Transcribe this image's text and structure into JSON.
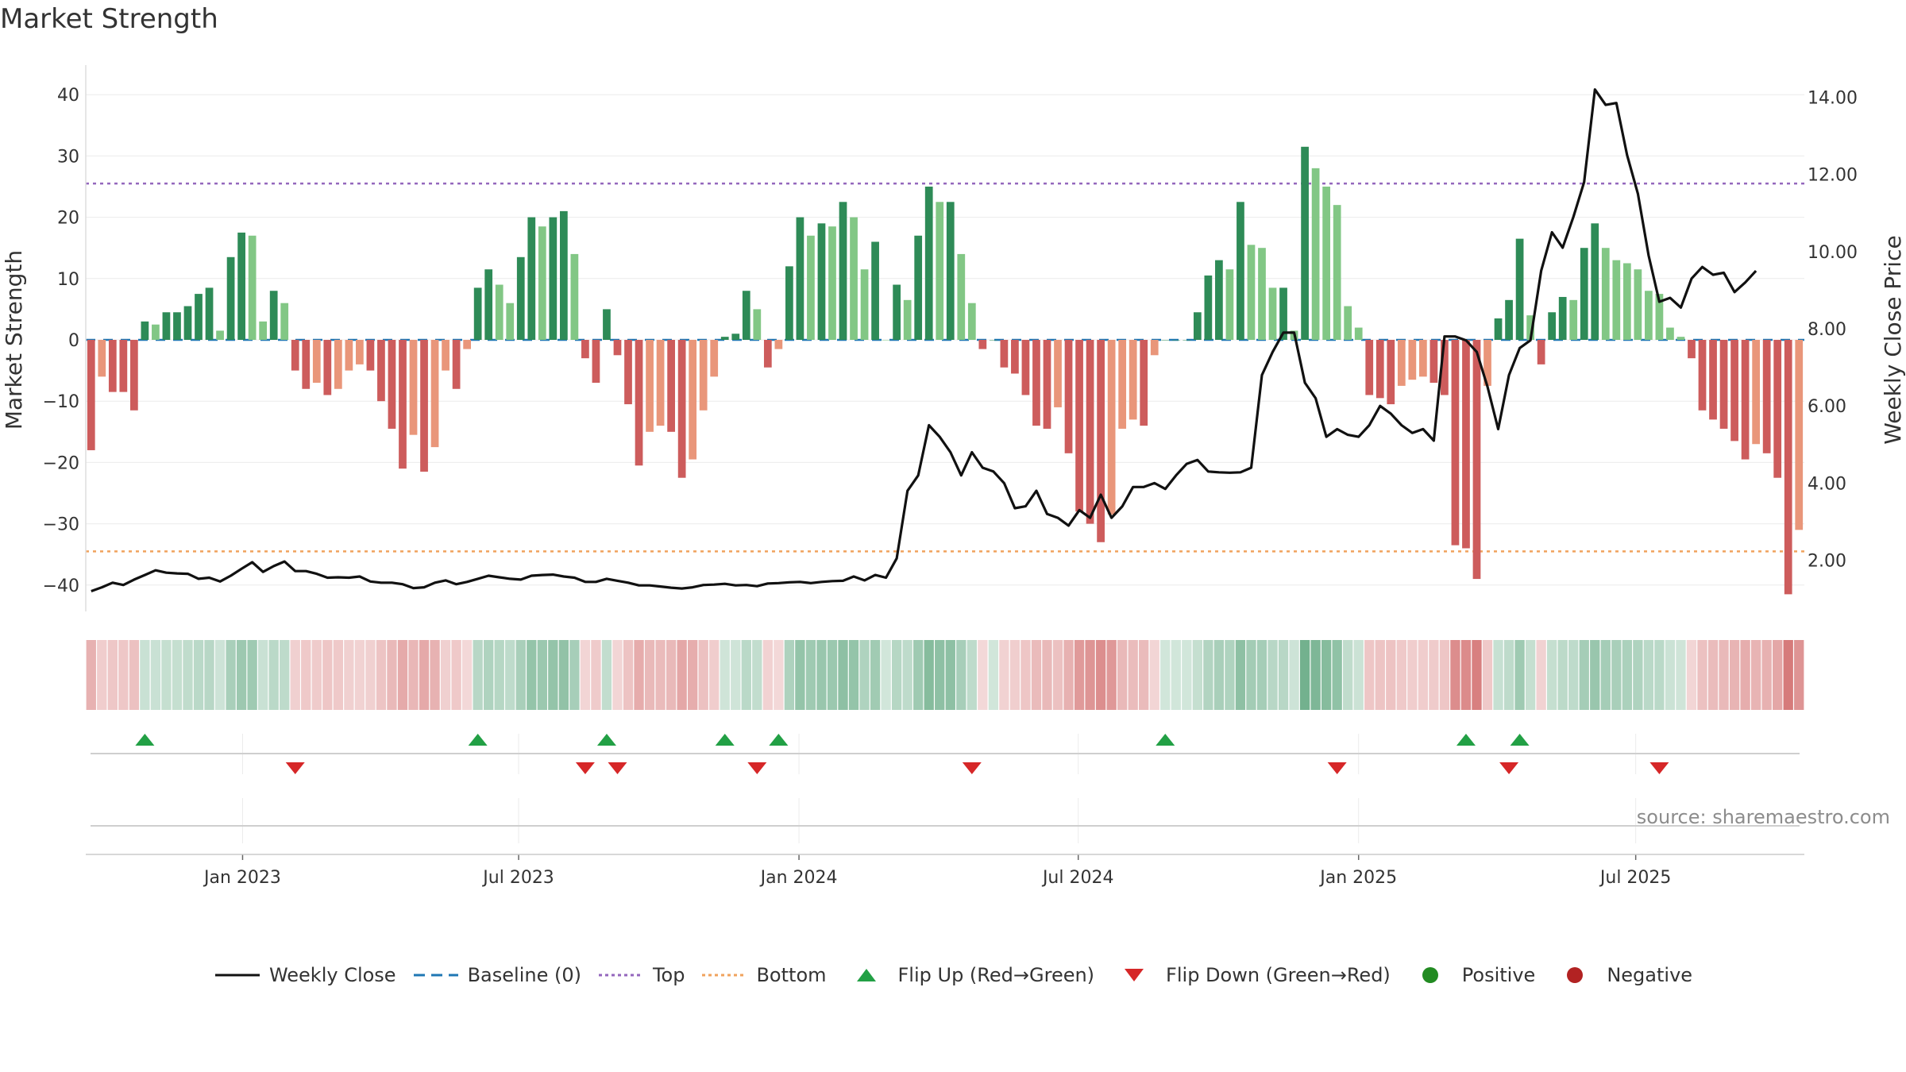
{
  "title": "Market Strength",
  "source": "source: sharemaestro.com",
  "colors": {
    "pos_strong": "#2e8b57",
    "pos_light": "#82c785",
    "neg_strong": "#cd5c5c",
    "neg_light": "#e9967a",
    "price": "#111111",
    "baseline": "#1f77b4",
    "top": "#9467bd",
    "bottom": "#f0a35e",
    "flip_up": "#22a045",
    "flip_down": "#d62728",
    "positive": "#228b22",
    "negative": "#b22222"
  },
  "chart_data": {
    "type": "bar",
    "ylabel": "Market Strength",
    "y2label": "Weekly Close Price",
    "ylim": [
      -45,
      45
    ],
    "y2lim": [
      0.7,
      15.0
    ],
    "yticks": [
      40,
      30,
      20,
      10,
      0,
      -10,
      -20,
      -30,
      -40
    ],
    "yticklabels": [
      "40",
      "30",
      "20",
      "10",
      "0",
      "−10",
      "−20",
      "−30",
      "−40"
    ],
    "y2ticks": [
      14,
      12,
      10,
      8,
      6,
      4,
      2
    ],
    "y2ticklabels": [
      "14.00",
      "12.00",
      "10.00",
      "8.00",
      "6.00",
      "4.00",
      "2.00"
    ],
    "xticks": [
      "Jan 2023",
      "Jul 2023",
      "Jan 2024",
      "Jul 2024",
      "Jan 2025",
      "Jul 2025"
    ],
    "xtick_weeks": [
      14.6,
      40.3,
      66.4,
      92.4,
      118.5,
      144.3
    ],
    "top_line": 25.5,
    "bottom_line": -34.5,
    "strength": [
      -18,
      -6,
      -8.5,
      -8.5,
      -11.5,
      3,
      2.5,
      4.5,
      4.5,
      5.5,
      7.5,
      8.5,
      1.5,
      13.5,
      17.5,
      17,
      3,
      8,
      6,
      -5,
      -8,
      -7,
      -9,
      -8,
      -5,
      -4,
      -5,
      -10,
      -14.5,
      -21,
      -15.5,
      -21.5,
      -17.5,
      -5,
      -8,
      -1.5,
      8.5,
      11.5,
      9,
      6,
      13.5,
      20,
      18.5,
      20,
      21,
      14,
      -3,
      -7,
      5,
      -2.5,
      -10.5,
      -20.5,
      -15,
      -14,
      -15,
      -22.5,
      -19.5,
      -11.5,
      -6,
      0.5,
      1,
      8,
      5,
      -4.5,
      -1.5,
      12,
      20,
      17,
      19,
      18.5,
      22.5,
      20,
      11.5,
      16,
      0,
      9,
      6.5,
      17,
      25,
      22.5,
      22.5,
      14,
      6,
      -1.5,
      0,
      -4.5,
      -5.5,
      -9,
      -14,
      -14.5,
      -11,
      -18.5,
      -28,
      -30,
      -33,
      -28.5,
      -14.5,
      -13,
      -14,
      -2.5,
      0,
      0,
      0,
      4.5,
      10.5,
      13,
      11.5,
      22.5,
      15.5,
      15,
      8.5,
      8.5,
      1.5,
      31.5,
      28,
      25,
      22,
      5.5,
      2,
      -9,
      -9.5,
      -10.5,
      -7.5,
      -6.5,
      -6,
      -7,
      -9,
      -33.5,
      -34,
      -39,
      -7.5,
      3.5,
      6.5,
      16.5,
      4,
      -4,
      4.5,
      7,
      6.5,
      15,
      19,
      15,
      13,
      12.5,
      11.5,
      8,
      7.5,
      2,
      0.5,
      -3,
      -11.5,
      -13,
      -14.5,
      -16.5,
      -19.5,
      -17,
      -18.5,
      -22.5,
      -41.5,
      -31
    ],
    "price": [
      1.2,
      1.3,
      1.42,
      1.36,
      1.5,
      1.62,
      1.74,
      1.68,
      1.66,
      1.65,
      1.52,
      1.55,
      1.45,
      1.6,
      1.78,
      1.95,
      1.7,
      1.85,
      1.97,
      1.72,
      1.72,
      1.65,
      1.55,
      1.56,
      1.55,
      1.58,
      1.45,
      1.42,
      1.42,
      1.38,
      1.28,
      1.3,
      1.42,
      1.48,
      1.38,
      1.44,
      1.52,
      1.6,
      1.56,
      1.52,
      1.5,
      1.6,
      1.62,
      1.63,
      1.58,
      1.55,
      1.44,
      1.44,
      1.52,
      1.47,
      1.42,
      1.35,
      1.35,
      1.32,
      1.29,
      1.27,
      1.3,
      1.36,
      1.37,
      1.39,
      1.35,
      1.36,
      1.33,
      1.4,
      1.41,
      1.43,
      1.44,
      1.41,
      1.44,
      1.46,
      1.47,
      1.58,
      1.48,
      1.62,
      1.55,
      2.05,
      3.8,
      4.2,
      5.5,
      5.2,
      4.8,
      4.2,
      4.8,
      4.4,
      4.3,
      4.0,
      3.35,
      3.4,
      3.8,
      3.2,
      3.1,
      2.9,
      3.3,
      3.1,
      3.7,
      3.1,
      3.4,
      3.9,
      3.9,
      4.0,
      3.85,
      4.2,
      4.5,
      4.6,
      4.3,
      4.28,
      4.27,
      4.28,
      4.4,
      6.8,
      7.4,
      7.9,
      7.9,
      6.6,
      6.2,
      5.2,
      5.4,
      5.25,
      5.2,
      5.5,
      6.0,
      5.8,
      5.5,
      5.3,
      5.4,
      5.1,
      7.8,
      7.8,
      7.7,
      7.4,
      6.5,
      5.4,
      6.8,
      7.5,
      7.7,
      9.5,
      10.5,
      10.1,
      10.9,
      11.8,
      14.2,
      13.8,
      13.85,
      12.5,
      11.5,
      9.9,
      8.7,
      8.8,
      8.55,
      9.3,
      9.6,
      9.4,
      9.45,
      8.95,
      9.2,
      9.5
    ],
    "flip_up_weeks": [
      5,
      36,
      48,
      59,
      64,
      100,
      128,
      133
    ],
    "flip_down_weeks": [
      19,
      46,
      49,
      62,
      82,
      116,
      132,
      146
    ]
  },
  "legend": [
    {
      "label": "Weekly Close",
      "symbol": "line",
      "color": "#111111"
    },
    {
      "label": "Baseline (0)",
      "symbol": "dashed",
      "color": "#1f77b4"
    },
    {
      "label": "Top",
      "symbol": "dotted",
      "color": "#9467bd"
    },
    {
      "label": "Bottom",
      "symbol": "dotted",
      "color": "#f0a35e"
    },
    {
      "label": "Flip Up (Red→Green)",
      "symbol": "triangle-up",
      "color": "#22a045"
    },
    {
      "label": "Flip Down (Green→Red)",
      "symbol": "triangle-down",
      "color": "#d62728"
    },
    {
      "label": "Positive",
      "symbol": "circle",
      "color": "#228b22"
    },
    {
      "label": "Negative",
      "symbol": "circle",
      "color": "#b22222"
    }
  ]
}
